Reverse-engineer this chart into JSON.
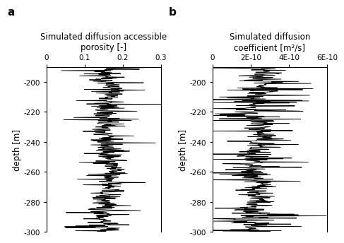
{
  "title_a": "Simulated diffusion accessible\nporosity [-]",
  "title_b": "Simulated diffusion\ncoefficient [m²/s]",
  "label_a": "a",
  "label_b": "b",
  "ylabel": "depth [m]",
  "xlim_a": [
    0,
    0.3
  ],
  "xlim_b": [
    0,
    6e-10
  ],
  "ylim": [
    -300,
    -190
  ],
  "yticks": [
    -300,
    -280,
    -260,
    -240,
    -220,
    -200
  ],
  "xticks_a": [
    0,
    0.1,
    0.2,
    0.3
  ],
  "xticklabels_a": [
    "0",
    "0.1",
    "0.2",
    "0.3"
  ],
  "xticks_b": [
    0,
    2e-10,
    4e-10,
    6e-10
  ],
  "xticklabels_b": [
    "0",
    "2E-10",
    "4E-10",
    "6E-10"
  ],
  "line_color": "black",
  "line_width": 0.6,
  "background": "white",
  "n_points": 500,
  "seed": 42
}
